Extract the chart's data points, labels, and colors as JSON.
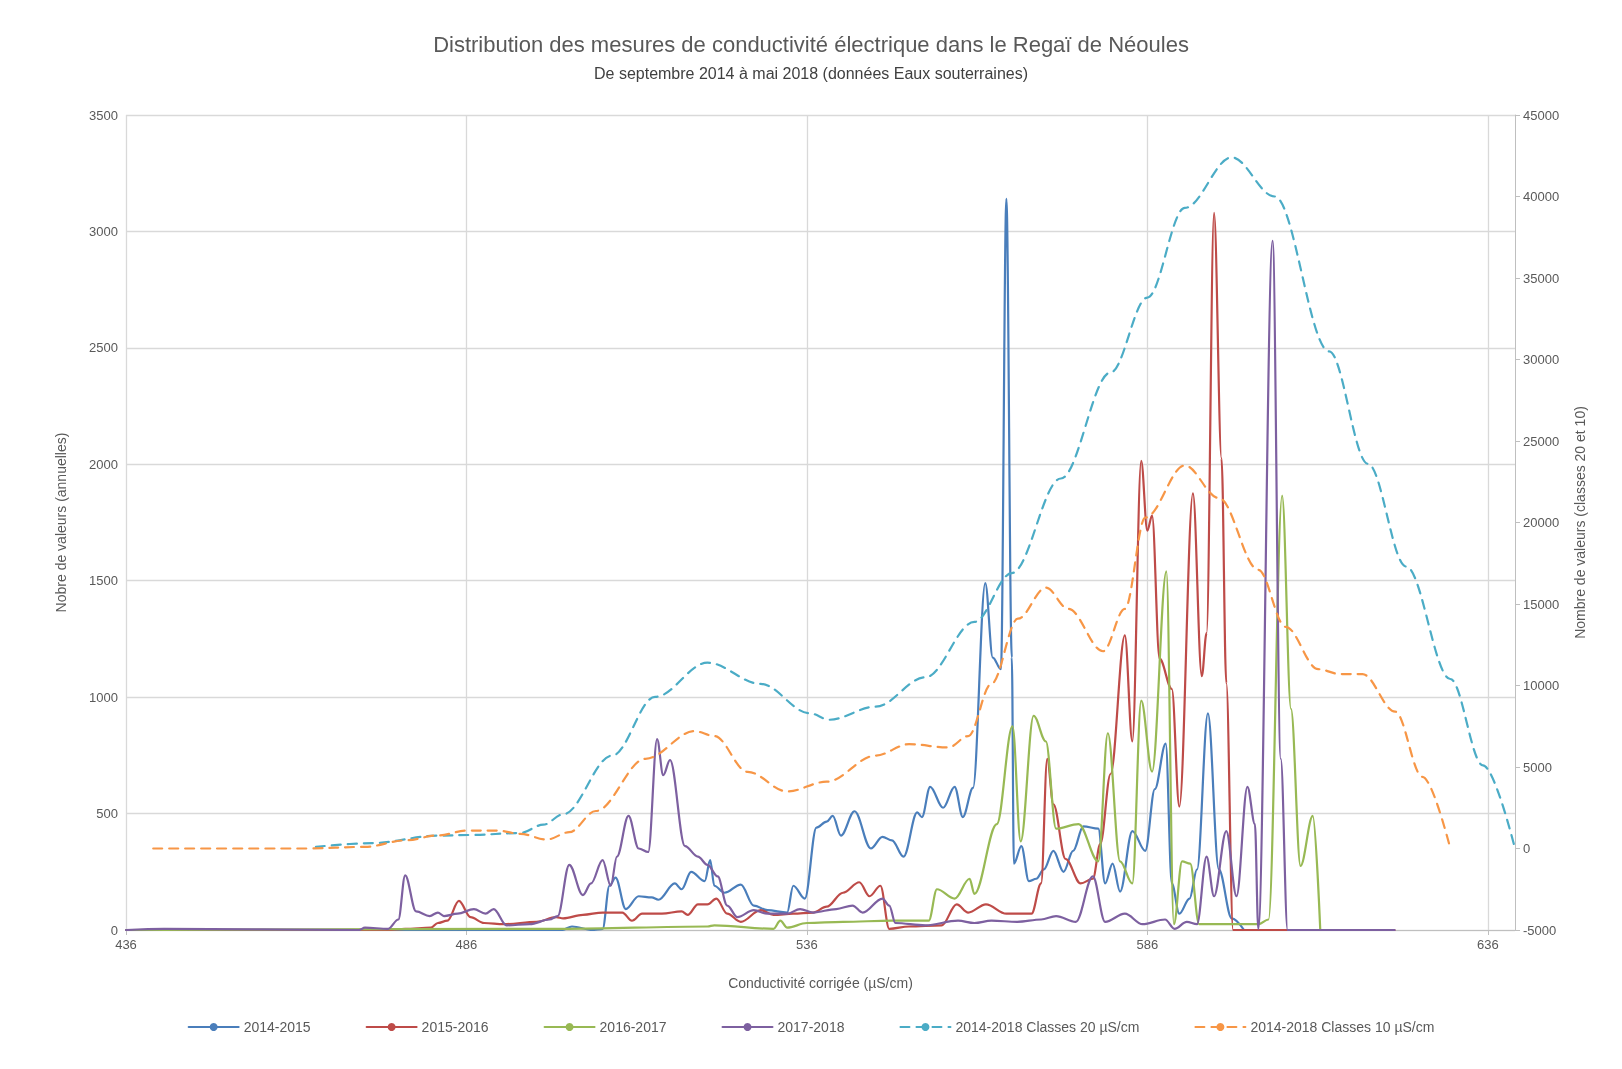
{
  "chart_data": {
    "type": "line",
    "title": "Distribution des mesures de conductivité électrique dans le Regaï de Néoules",
    "subtitle": "De septembre 2014 à mai 2018 (données Eaux souterraines)",
    "xlabel": "Conductivité corrigée (µS/cm)",
    "ylabel": "Nobre de valeurs (annuelles)",
    "y2label": "Nombre de valeurs (classes 20 et 10)",
    "xlim": [
      436,
      640
    ],
    "xticks": [
      436,
      486,
      536,
      586,
      636
    ],
    "ylim": [
      0,
      3500
    ],
    "yticks": [
      0,
      500,
      1000,
      1500,
      2000,
      2500,
      3000,
      3500
    ],
    "y2lim": [
      -5000,
      45000
    ],
    "y2ticks": [
      -5000,
      0,
      5000,
      10000,
      15000,
      20000,
      25000,
      30000,
      35000,
      40000,
      45000
    ],
    "grid": true,
    "legend": "bottom",
    "marker": "none",
    "series": [
      {
        "name": "2014-2015",
        "color": "#4a7ebb",
        "line_style": "solid",
        "x": [
          436,
          500,
          501.5,
          504.5,
          506,
          507,
          507.9,
          509.4,
          511.3,
          513.2,
          514.2,
          516.6,
          517.6,
          519,
          521,
          521.8,
          522.4,
          523.9,
          526.3,
          528.2,
          530.2,
          533.1,
          534,
          535.7,
          537.4,
          538.9,
          539.8,
          541,
          543,
          545.4,
          547.1,
          548.5,
          550.2,
          552.2,
          552.9,
          554.1,
          556,
          557.7,
          558.9,
          560.4,
          562.2,
          563.3,
          564.5,
          565.3,
          566.1,
          566.4,
          567.5,
          568.6,
          569.7,
          570.8,
          572.2,
          573.7,
          575.1,
          576.6,
          578.8,
          579.8,
          580.9,
          582,
          583.8,
          585.7,
          587.1,
          588.7,
          589.6,
          590.7,
          592.2,
          593.3,
          594.9,
          596.5,
          598.4,
          600.2
        ],
        "values": [
          0,
          0,
          15,
          0,
          5,
          190,
          225,
          90,
          145,
          140,
          130,
          200,
          175,
          250,
          210,
          300,
          190,
          160,
          195,
          105,
          85,
          75,
          190,
          135,
          440,
          465,
          490,
          405,
          510,
          350,
          400,
          385,
          315,
          505,
          485,
          615,
          525,
          615,
          485,
          610,
          1490,
          1170,
          1120,
          3140,
          1170,
          285,
          360,
          210,
          220,
          260,
          340,
          250,
          340,
          445,
          435,
          200,
          285,
          165,
          425,
          340,
          605,
          800,
          200,
          70,
          135,
          260,
          930,
          260,
          50,
          0
        ]
      },
      {
        "name": "2015-2016",
        "color": "#be4b48",
        "line_style": "solid",
        "x": [
          436,
          474.5,
          477,
          480.8,
          481.8,
          483.2,
          484.9,
          486.6,
          488.6,
          491.5,
          496.3,
          499.2,
          500.2,
          503.1,
          506,
          508.9,
          510.3,
          511.8,
          514.7,
          517.6,
          518.5,
          520,
          521.4,
          522.7,
          524.3,
          526.3,
          529.2,
          531.1,
          534,
          536.9,
          538.9,
          541.3,
          543.7,
          545.2,
          546.8,
          548.1,
          551,
          555.8,
          558,
          559.7,
          562.3,
          565.3,
          569,
          570.4,
          571.3,
          572.2,
          574,
          576.2,
          578,
          579.1,
          580.6,
          582.7,
          583.8,
          585.1,
          586,
          586.7,
          587.8,
          589.6,
          590.7,
          592.7,
          594,
          594.7,
          595.8,
          596.9,
          597.6,
          598.6,
          622.3
        ],
        "values": [
          0,
          0,
          5,
          10,
          30,
          40,
          125,
          55,
          30,
          25,
          35,
          55,
          50,
          65,
          75,
          75,
          40,
          70,
          70,
          80,
          65,
          110,
          110,
          135,
          70,
          35,
          85,
          65,
          70,
          75,
          100,
          160,
          205,
          145,
          190,
          5,
          15,
          20,
          110,
          75,
          110,
          70,
          70,
          200,
          735,
          540,
          305,
          200,
          220,
          370,
          670,
          1265,
          810,
          2015,
          1715,
          1780,
          1165,
          1035,
          530,
          1875,
          1090,
          1275,
          3080,
          2025,
          1060,
          0,
          0
        ]
      },
      {
        "name": "2016-2017",
        "color": "#98b954",
        "line_style": "solid",
        "x": [
          436,
          500,
          521.4,
          522.4,
          531.1,
          532.1,
          533.1,
          536,
          541.3,
          548.5,
          553.9,
          555.1,
          557.7,
          559.9,
          560.6,
          563.9,
          566.2,
          567.4,
          569.3,
          571.1,
          572.6,
          575.9,
          578.8,
          580.2,
          582,
          583.8,
          585.1,
          586.7,
          588.8,
          589.9,
          591.1,
          592.3,
          593.6,
          602.3,
          603.8,
          605.8,
          607.1,
          608.5,
          610.3,
          611.4
        ],
        "values": [
          0,
          5,
          15,
          20,
          5,
          40,
          10,
          30,
          35,
          40,
          40,
          175,
          135,
          220,
          155,
          455,
          875,
          380,
          920,
          810,
          435,
          455,
          295,
          845,
          295,
          200,
          985,
          680,
          1540,
          25,
          295,
          285,
          25,
          25,
          45,
          1865,
          950,
          275,
          490,
          0
        ]
      },
      {
        "name": "2017-2018",
        "color": "#7d60a0",
        "line_style": "solid",
        "x": [
          436,
          441.6,
          470.2,
          471.1,
          474.5,
          476,
          477,
          478.6,
          480.6,
          481.8,
          482.7,
          484.7,
          487.1,
          488.8,
          490,
          491.9,
          495.3,
          498.2,
          499.4,
          501.1,
          503.1,
          504.3,
          506,
          507.2,
          508.1,
          509.8,
          511.3,
          512.7,
          514,
          514.9,
          515.9,
          518.1,
          520,
          521.4,
          522.9,
          524.3,
          525.8,
          528.2,
          530.2,
          533.1,
          535,
          536.9,
          540.3,
          542.7,
          544.2,
          547.1,
          548.1,
          549,
          553.4,
          558.2,
          560.6,
          563.1,
          566.9,
          570.4,
          572.6,
          575.5,
          578,
          579.8,
          582.7,
          585.3,
          588.6,
          590,
          591.8,
          593.3,
          594.7,
          595.8,
          597.6,
          599.1,
          600.7,
          601.8,
          602.3,
          604.4,
          605.6,
          606.6,
          622.3
        ],
        "values": [
          0,
          5,
          0,
          10,
          5,
          45,
          235,
          80,
          60,
          75,
          60,
          70,
          90,
          70,
          90,
          20,
          25,
          45,
          60,
          280,
          150,
          200,
          300,
          190,
          315,
          490,
          350,
          335,
          820,
          665,
          730,
          360,
          315,
          280,
          230,
          105,
          55,
          85,
          70,
          70,
          90,
          75,
          90,
          105,
          75,
          135,
          105,
          30,
          20,
          40,
          30,
          40,
          35,
          45,
          60,
          35,
          230,
          35,
          70,
          25,
          45,
          5,
          35,
          25,
          315,
          145,
          425,
          145,
          615,
          455,
          5,
          2960,
          735,
          0,
          0
        ]
      },
      {
        "name": "2014-2018 Classes 20 µS/cm",
        "color": "#4bacc6",
        "line_style": "dashed",
        "axis": "y2",
        "x": [
          463.9,
          472.1,
          481.8,
          486.6,
          493.9,
          497.3,
          500.2,
          507.4,
          513.7,
          521.4,
          529.2,
          536.4,
          539.3,
          546.1,
          553.4,
          560.6,
          566.1,
          573.3,
          580.6,
          586,
          591.5,
          598.4,
          604.7,
          612.7,
          618.4,
          624,
          630.5,
          635.3,
          640
        ],
        "values": [
          100,
          330,
          790,
          830,
          950,
          1460,
          2100,
          5700,
          9300,
          11400,
          10100,
          8300,
          7900,
          8700,
          10500,
          13900,
          16900,
          22700,
          29200,
          33800,
          39300,
          42400,
          40000,
          30500,
          23600,
          17300,
          10400,
          5100,
          0
        ]
      },
      {
        "name": "2014-2018 Classes 10 µS/cm",
        "color": "#f79646",
        "line_style": "dashed",
        "axis": "y2",
        "x": [
          440,
          462.4,
          471.1,
          477,
          481.8,
          486.1,
          490.5,
          493.9,
          497.8,
          501.1,
          505,
          512.3,
          519.5,
          522.4,
          527.3,
          533.1,
          538.9,
          546.1,
          551,
          556.8,
          559.7,
          563.1,
          567,
          571.1,
          574.4,
          579.5,
          582.7,
          585.7,
          591.5,
          596.5,
          602.3,
          606.3,
          611.1,
          614.3,
          617.6,
          622.4,
          626.4,
          630.5
        ],
        "values": [
          0,
          0,
          100,
          500,
          800,
          1100,
          1100,
          900,
          550,
          1000,
          2300,
          5500,
          7200,
          6900,
          4700,
          3500,
          4100,
          5700,
          6400,
          6200,
          6900,
          10100,
          14100,
          16000,
          14700,
          12100,
          14700,
          20300,
          23500,
          21500,
          17100,
          13600,
          11000,
          10700,
          10700,
          8400,
          4400,
          0
        ]
      }
    ]
  }
}
